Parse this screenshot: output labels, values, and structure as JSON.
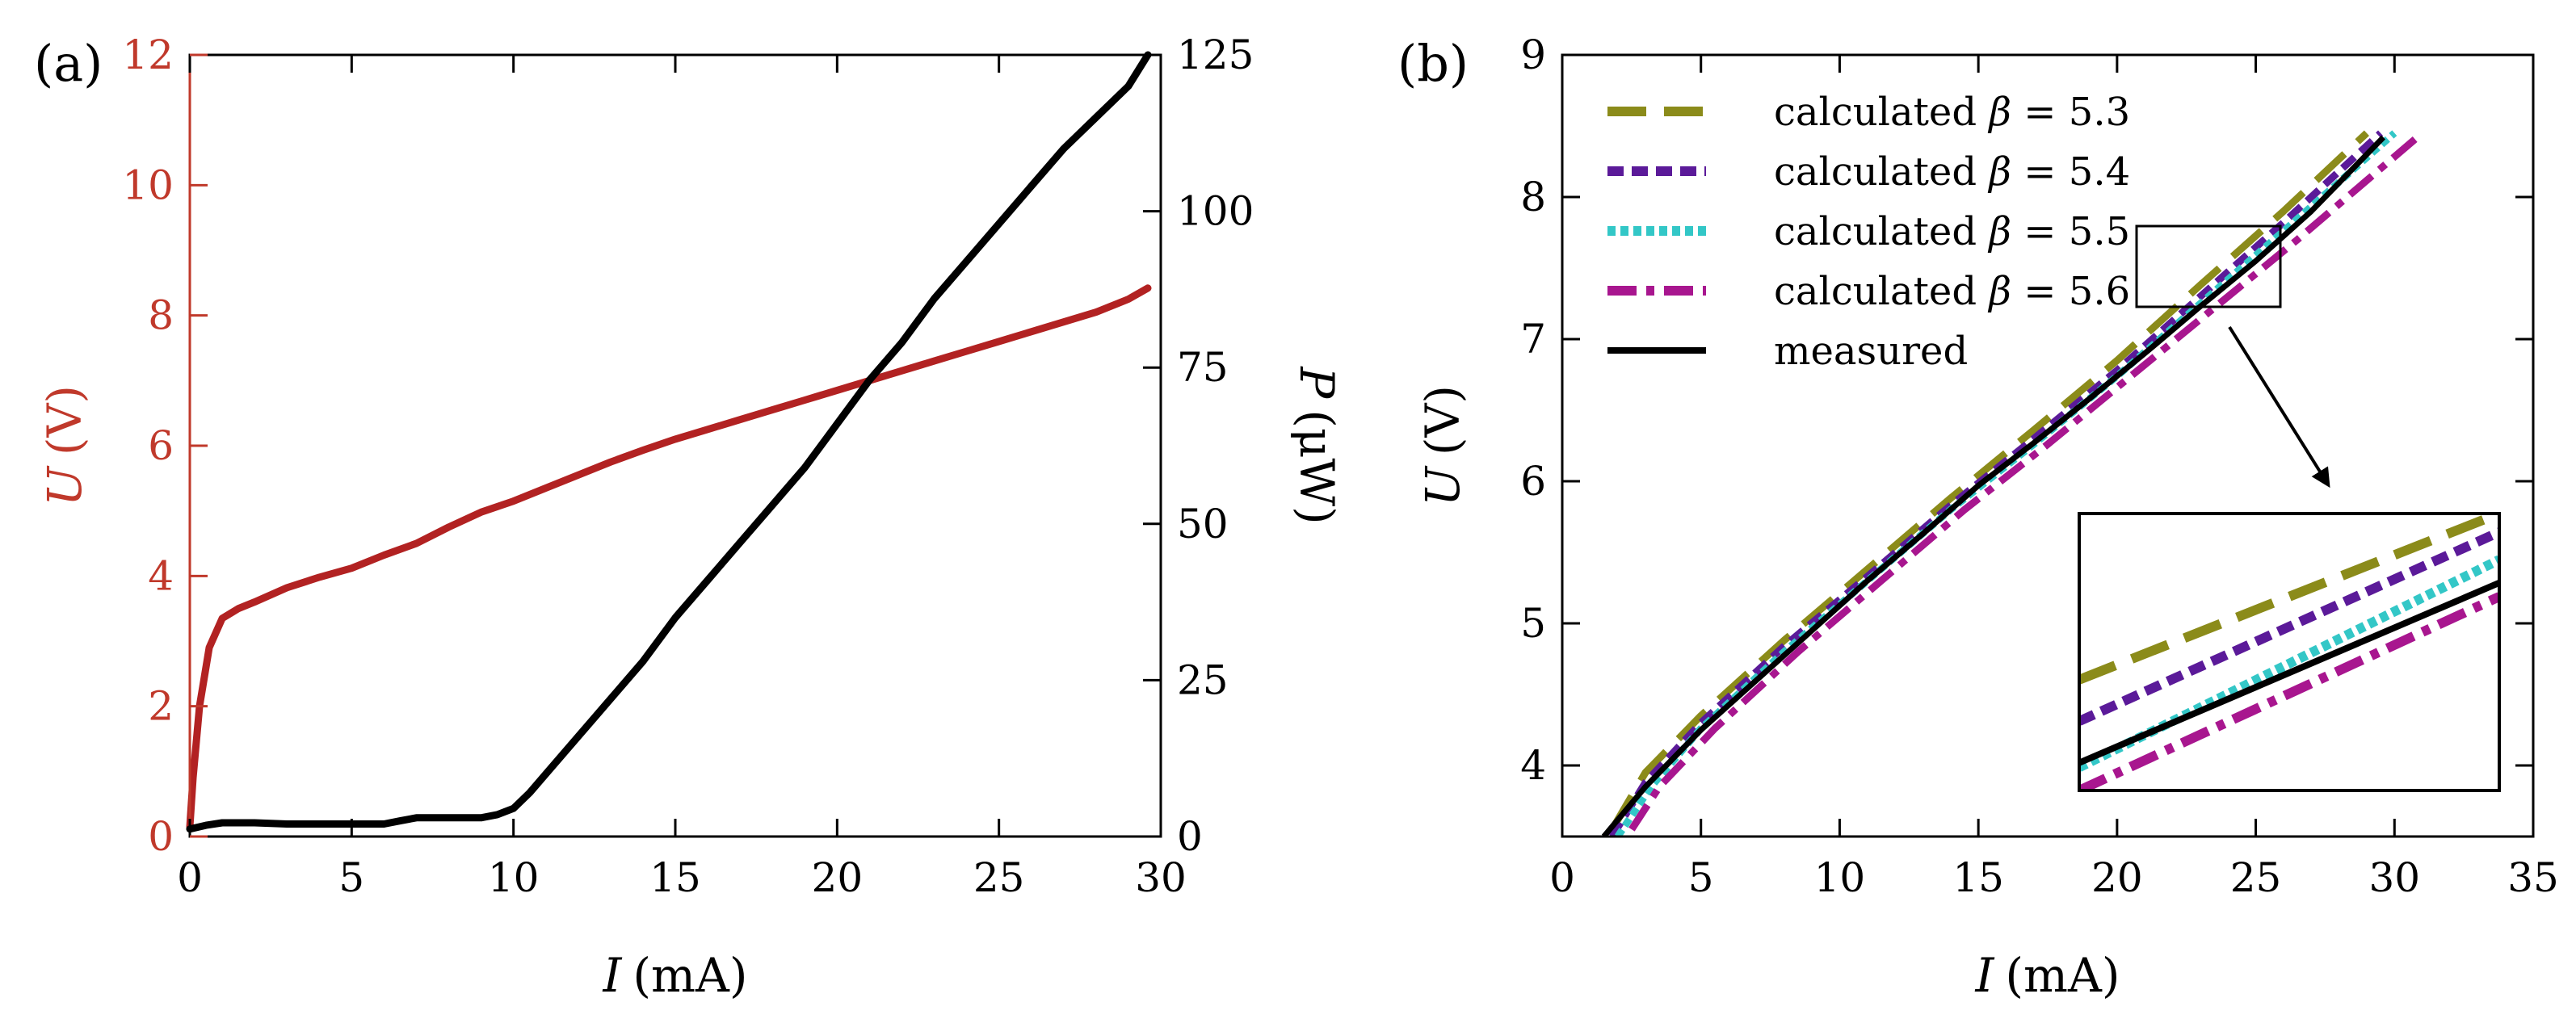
{
  "chart_data": [
    {
      "panel_label": "(a)",
      "type": "line",
      "xlabel_var": "I",
      "xlabel_unit": "(mA)",
      "ylabel_var": "U",
      "ylabel_unit": "(V)",
      "y2label_var": "P",
      "y2label_unit": "(μW)",
      "xlim": [
        0,
        30
      ],
      "ylim": [
        0,
        12
      ],
      "y2lim": [
        0,
        125
      ],
      "xticks": [
        "0",
        "5",
        "10",
        "15",
        "20",
        "25",
        "30"
      ],
      "yticks": [
        "0",
        "2",
        "4",
        "6",
        "8",
        "10",
        "12"
      ],
      "y2ticks": [
        "0",
        "25",
        "50",
        "75",
        "100",
        "125"
      ],
      "grid": false,
      "colors": {
        "voltage": "#b22222",
        "power": "#000000",
        "left_axis": "#c0392b"
      },
      "series": [
        {
          "name": "U",
          "axis": "left",
          "x": [
            0,
            0.1,
            0.3,
            0.6,
            1.0,
            1.5,
            2,
            3,
            4,
            5,
            6,
            7,
            8,
            9,
            10,
            11,
            12,
            13,
            14,
            15,
            16,
            17,
            18,
            19,
            20,
            21,
            22,
            23,
            24,
            25,
            26,
            27,
            28,
            29,
            29.6
          ],
          "values": [
            0.15,
            0.9,
            2.0,
            2.9,
            3.35,
            3.5,
            3.6,
            3.82,
            3.98,
            4.12,
            4.32,
            4.5,
            4.75,
            4.98,
            5.15,
            5.35,
            5.55,
            5.75,
            5.93,
            6.1,
            6.25,
            6.4,
            6.55,
            6.7,
            6.85,
            7.0,
            7.15,
            7.3,
            7.45,
            7.6,
            7.75,
            7.9,
            8.05,
            8.25,
            8.42
          ]
        },
        {
          "name": "P",
          "axis": "right",
          "x": [
            0,
            0.5,
            1,
            2,
            3,
            4,
            5,
            6,
            6.5,
            7,
            8,
            9,
            9.5,
            10,
            10.5,
            11,
            12,
            13,
            14,
            15,
            16,
            17,
            18,
            19,
            20,
            21,
            22,
            23,
            24,
            25,
            26,
            27,
            28,
            29,
            29.6
          ],
          "values": [
            1.2,
            1.8,
            2.2,
            2.2,
            2.0,
            2.0,
            2.0,
            2.0,
            2.5,
            3.0,
            3.0,
            3.0,
            3.5,
            4.5,
            7,
            10,
            16,
            22,
            28,
            35,
            41,
            47,
            53,
            59,
            66,
            73,
            79,
            86,
            92,
            98,
            104,
            110,
            115,
            120,
            125
          ]
        }
      ]
    },
    {
      "panel_label": "(b)",
      "type": "line",
      "xlabel_var": "I",
      "xlabel_unit": "(mA)",
      "ylabel_var": "U",
      "ylabel_unit": "(V)",
      "xlim": [
        0,
        35
      ],
      "ylim": [
        3.5,
        9
      ],
      "xticks": [
        "0",
        "5",
        "10",
        "15",
        "20",
        "25",
        "30",
        "35"
      ],
      "yticks": [
        "4",
        "5",
        "6",
        "7",
        "8",
        "9"
      ],
      "grid": false,
      "legend_position": "top-left",
      "legend": [
        {
          "prefix": "calculated ",
          "symbol": "β",
          "suffix": " = 5.3",
          "color": "#8b8b1a",
          "style": "dashed"
        },
        {
          "prefix": "calculated ",
          "symbol": "β",
          "suffix": " = 5.4",
          "color": "#5b1a99",
          "style": "short-dashed"
        },
        {
          "prefix": "calculated ",
          "symbol": "β",
          "suffix": " = 5.5",
          "color": "#33c7c7",
          "style": "dotted"
        },
        {
          "prefix": "calculated ",
          "symbol": "β",
          "suffix": " = 5.6",
          "color": "#a8168f",
          "style": "dash-dot"
        },
        {
          "prefix": "measured",
          "symbol": "",
          "suffix": "",
          "color": "#000000",
          "style": "solid"
        }
      ],
      "series": [
        {
          "name": "calculated β = 5.3",
          "x": [
            1.8,
            3,
            5,
            8,
            11,
            14,
            17,
            20,
            23,
            26,
            29
          ],
          "values": [
            3.55,
            3.95,
            4.35,
            4.88,
            5.38,
            5.88,
            6.36,
            6.85,
            7.38,
            7.9,
            8.45
          ]
        },
        {
          "name": "calculated β = 5.4",
          "x": [
            1.8,
            3,
            5,
            8,
            11,
            14,
            17,
            20,
            23,
            26,
            29.5
          ],
          "values": [
            3.5,
            3.88,
            4.3,
            4.84,
            5.33,
            5.83,
            6.3,
            6.78,
            7.3,
            7.82,
            8.45
          ]
        },
        {
          "name": "calculated β = 5.5",
          "x": [
            2,
            3.2,
            5,
            8,
            11,
            14,
            17,
            20,
            23,
            26,
            30
          ],
          "values": [
            3.5,
            3.85,
            4.26,
            4.8,
            5.3,
            5.8,
            6.26,
            6.74,
            7.25,
            7.76,
            8.45
          ]
        },
        {
          "name": "calculated β = 5.6",
          "x": [
            2.5,
            3.5,
            5.5,
            8.5,
            11.5,
            14.5,
            17.5,
            20.5,
            23.5,
            26.5,
            31
          ],
          "values": [
            3.55,
            3.85,
            4.26,
            4.8,
            5.3,
            5.8,
            6.26,
            6.74,
            7.22,
            7.7,
            8.45
          ]
        },
        {
          "name": "measured",
          "x": [
            1.5,
            3,
            5,
            7,
            9,
            11,
            13,
            15,
            17,
            19,
            21,
            23,
            25,
            27,
            29.6
          ],
          "values": [
            3.5,
            3.85,
            4.25,
            4.6,
            4.95,
            5.3,
            5.63,
            5.97,
            6.27,
            6.58,
            6.9,
            7.23,
            7.55,
            7.9,
            8.42
          ]
        }
      ]
    }
  ]
}
